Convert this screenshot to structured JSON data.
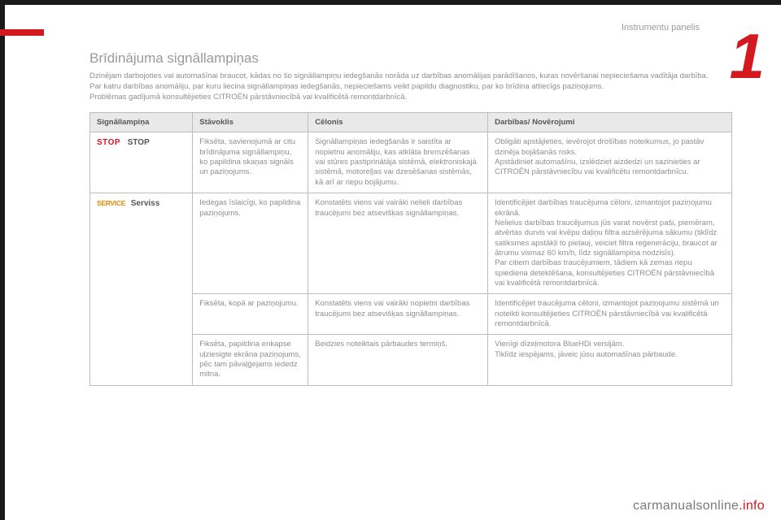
{
  "page": {
    "section_label": "Instrumentu panelis",
    "big_numeral": "1",
    "heading": "Brīdinājuma signāllampiņas",
    "intro_p1": "Dzinējam darbojoties vai automašīnai braucot, kādas no šo signāllampiņu iedegšanās norāda uz darbības anomālijas parādīšanos, kuras novēršanai nepieciešama vadītāja darbība.",
    "intro_p2": "Par katru darbības anomāliju, par kuru liecina signāllampiņas iedegšanās, nepieciešams veikt papildu diagnostiku, par ko brīdina attiecīgs paziņojums.",
    "intro_p3": "Problēmas gadījumā konsultējieties CITROËN pārstāvniecībā vai kvalificētā remontdarbnīcā.",
    "table": {
      "headers": {
        "lamp": "Signāllampiņa",
        "state": "Stāvoklis",
        "cause": "Cēlonis",
        "action": "Darbības/ Novērojumi"
      },
      "widths": {
        "lamp": 0.16,
        "state": 0.18,
        "cause": 0.28,
        "action": 0.38
      },
      "rows": [
        {
          "lamp_icon": "STOP",
          "lamp_icon_color": "#d41820",
          "lamp_label": "STOP",
          "state": "Fiksēta, savienojumā ar citu brīdinājuma signāllampiņu, ko papildina skaņas signāls un paziņojums.",
          "cause": "Signāllampiņas iedegšanās ir saistīta ar nopietnu anomāliju, kas atklāta bremzēšanas vai stūres pastiprinātāja sistēmā, elektroniskajā sistēmā, motoreļļas vai dzesēšanas sistēmās, kā arī ar riepu bojājumu.",
          "action": "Obligāti apstājieties, ievērojot drošības noteikumus, jo pastāv dzinēja bojāšanās risks.\nApstādiniet automašīnu, izslēdziet aizdedzi un sazinieties ar CITROËN pārstāvniecību vai kvalificētu remontdarbnīcu."
        },
        {
          "lamp_icon": "SERVICE",
          "lamp_icon_color": "#e08a00",
          "lamp_label": "Serviss",
          "state": "Iedegas īslaicīgi, ko papildina paziņojums.",
          "cause": "Konstatēts viens vai vairāki nelieli darbības traucējumi bez atsevišķas signāllampiņas.",
          "action": "Identificējiet darbības traucējuma cēloni, izmantojot paziņojumu ekrānā.\nNelielus darbības traucējumus jūs varat novērst paši, piemēram, atvērtas durvis vai kvēpu daļiņu filtra aizsērējuma sākumu (tiklīdz satiksmes apstākļi to pieļauj, veiciet filtra reģenerāciju, braucot ar ātrumu vismaz 60 km/h, līdz signāllampiņa nodzisīs).\nPar citiem darbības traucējumiem, tādiem kā zemas riepu spiediena detektēšana, konsultējieties CITROËN pārstāvniecībā vai kvalificētā remontdarbnīcā."
        },
        {
          "lamp_icon": "",
          "lamp_label": "",
          "state": "Fiksēta, kopā ar paziņojumu.",
          "cause": "Konstatēts viens vai vairāki nopietni darbības traucējumi bez atsevišķas signāllampiņas.",
          "action": "Identificējiet traucējuma cēloni, izmantojot paziņojumu sistēmā un noteikti konsultējieties CITROËN pārstāvniecībā vai kvalificētā remontdarbnīcā."
        },
        {
          "lamp_icon": "",
          "lamp_label": "",
          "state": "Fiksēta, papildina enkapse uļziesigte ekrāna paziņojums, pēc tam pāvaļģejams iededz mitna.",
          "cause": "Beidzies noteiktais pārbaudes termiņš.",
          "action": "Vienīgi dīzeļmotora BlueHDi versijām.\nTiklīdz iespējams, jāveic jūsu automašīnas pārbaude."
        }
      ]
    },
    "footer_brand_1": "carmanualsonline",
    "footer_brand_2": ".info",
    "colors": {
      "accent_red": "#d41820",
      "accent_orange": "#e08a00",
      "bar_dark": "#1a1a1a",
      "header_bg": "#e9e9e9",
      "border": "#bdbdbd",
      "text_muted": "#8e8e8e",
      "text_header": "#555555",
      "background": "#ffffff"
    },
    "typography": {
      "heading_fontsize_pt": 13,
      "body_fontsize_pt": 7,
      "family": "Arial"
    }
  }
}
